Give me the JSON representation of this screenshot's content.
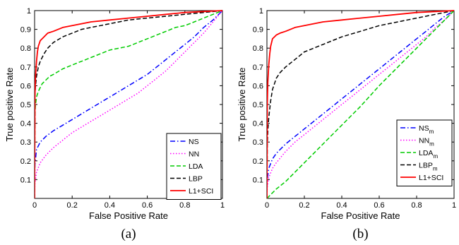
{
  "chart_data": [
    {
      "type": "line",
      "caption": "(a)",
      "xlabel": "False Positive Rate",
      "ylabel": "True positive Rate",
      "xlim": [
        0,
        1
      ],
      "ylim": [
        0,
        1
      ],
      "xticks": [
        "0",
        "0.2",
        "0.4",
        "0.6",
        "0.8",
        "1"
      ],
      "yticks": [
        "0.1",
        "0.2",
        "0.3",
        "0.4",
        "0.5",
        "0.6",
        "0.7",
        "0.8",
        "0.9",
        "1"
      ],
      "xtick_values": [
        0,
        0.2,
        0.4,
        0.6,
        0.8,
        1
      ],
      "ytick_values": [
        0.1,
        0.2,
        0.3,
        0.4,
        0.5,
        0.6,
        0.7,
        0.8,
        0.9,
        1
      ],
      "grid": false,
      "legend": "bottom-right",
      "series": [
        {
          "name": "NS",
          "color": "#0000ff",
          "dash": "dashdot",
          "x": [
            0,
            0.002,
            0.01,
            0.03,
            0.06,
            0.1,
            0.15,
            0.2,
            0.25,
            0.3,
            0.35,
            0.4,
            0.45,
            0.5,
            0.55,
            0.6,
            0.65,
            0.7,
            0.75,
            0.8,
            0.85,
            0.9,
            0.95,
            1
          ],
          "y": [
            0,
            0.18,
            0.26,
            0.3,
            0.33,
            0.36,
            0.39,
            0.42,
            0.45,
            0.48,
            0.51,
            0.54,
            0.57,
            0.6,
            0.63,
            0.66,
            0.7,
            0.74,
            0.78,
            0.82,
            0.86,
            0.91,
            0.95,
            1
          ]
        },
        {
          "name": "NN",
          "color": "#ff00ff",
          "dash": "dotted",
          "x": [
            0,
            0.002,
            0.01,
            0.03,
            0.06,
            0.1,
            0.15,
            0.2,
            0.25,
            0.3,
            0.35,
            0.4,
            0.45,
            0.5,
            0.55,
            0.6,
            0.65,
            0.7,
            0.75,
            0.8,
            0.85,
            0.9,
            0.95,
            1
          ],
          "y": [
            0,
            0.08,
            0.14,
            0.19,
            0.23,
            0.27,
            0.31,
            0.35,
            0.38,
            0.41,
            0.44,
            0.47,
            0.5,
            0.53,
            0.56,
            0.6,
            0.64,
            0.68,
            0.73,
            0.78,
            0.83,
            0.88,
            0.94,
            1
          ]
        },
        {
          "name": "LDA",
          "color": "#00cc00",
          "dash": "dashed",
          "x": [
            0,
            0.002,
            0.005,
            0.01,
            0.02,
            0.04,
            0.06,
            0.08,
            0.1,
            0.15,
            0.2,
            0.25,
            0.3,
            0.35,
            0.4,
            0.45,
            0.5,
            0.55,
            0.6,
            0.65,
            0.7,
            0.75,
            0.8,
            0.85,
            0.9,
            0.95,
            1
          ],
          "y": [
            0,
            0.45,
            0.5,
            0.54,
            0.57,
            0.61,
            0.63,
            0.65,
            0.66,
            0.69,
            0.71,
            0.73,
            0.75,
            0.77,
            0.79,
            0.8,
            0.81,
            0.83,
            0.85,
            0.87,
            0.89,
            0.91,
            0.92,
            0.94,
            0.96,
            0.98,
            1
          ]
        },
        {
          "name": "LBP",
          "color": "#000000",
          "dash": "dashed",
          "x": [
            0,
            0.002,
            0.005,
            0.01,
            0.02,
            0.03,
            0.05,
            0.07,
            0.1,
            0.15,
            0.2,
            0.25,
            0.3,
            0.35,
            0.4,
            0.45,
            0.5,
            0.6,
            0.7,
            0.8,
            0.9,
            1
          ],
          "y": [
            0,
            0.55,
            0.6,
            0.65,
            0.7,
            0.73,
            0.77,
            0.8,
            0.83,
            0.86,
            0.88,
            0.9,
            0.91,
            0.92,
            0.93,
            0.94,
            0.95,
            0.96,
            0.97,
            0.98,
            0.99,
            1
          ]
        },
        {
          "name": "L1+SCI",
          "color": "#ff0000",
          "dash": "solid",
          "x": [
            0,
            0.002,
            0.005,
            0.01,
            0.015,
            0.02,
            0.03,
            0.05,
            0.07,
            0.1,
            0.15,
            0.2,
            0.3,
            0.4,
            0.5,
            0.6,
            0.7,
            0.8,
            0.9,
            1
          ],
          "y": [
            0,
            0.55,
            0.65,
            0.73,
            0.78,
            0.81,
            0.84,
            0.86,
            0.88,
            0.89,
            0.91,
            0.92,
            0.94,
            0.95,
            0.96,
            0.97,
            0.98,
            0.99,
            0.995,
            1
          ]
        }
      ]
    },
    {
      "type": "line",
      "caption": "(b)",
      "xlabel": "False Positive Rate",
      "ylabel": "True positive Rate",
      "xlim": [
        0,
        1
      ],
      "ylim": [
        0,
        1
      ],
      "xticks": [
        "0",
        "0.2",
        "0.4",
        "0.6",
        "0.8",
        "1"
      ],
      "yticks": [
        "0.1",
        "0.2",
        "0.3",
        "0.4",
        "0.5",
        "0.6",
        "0.7",
        "0.8",
        "0.9",
        "1"
      ],
      "xtick_values": [
        0,
        0.2,
        0.4,
        0.6,
        0.8,
        1
      ],
      "ytick_values": [
        0.1,
        0.2,
        0.3,
        0.4,
        0.5,
        0.6,
        0.7,
        0.8,
        0.9,
        1
      ],
      "grid": false,
      "legend": "bottom-right",
      "series": [
        {
          "name": "NS",
          "subscript": "m",
          "color": "#0000ff",
          "dash": "dashdot",
          "x": [
            0,
            0.002,
            0.01,
            0.03,
            0.05,
            0.1,
            0.15,
            0.2,
            0.25,
            0.3,
            0.35,
            0.4,
            0.45,
            0.5,
            0.55,
            0.6,
            0.65,
            0.7,
            0.75,
            0.8,
            0.85,
            0.9,
            0.95,
            1
          ],
          "y": [
            0,
            0.1,
            0.16,
            0.21,
            0.24,
            0.29,
            0.33,
            0.37,
            0.41,
            0.45,
            0.49,
            0.53,
            0.57,
            0.61,
            0.65,
            0.69,
            0.73,
            0.77,
            0.81,
            0.85,
            0.89,
            0.93,
            0.97,
            1
          ]
        },
        {
          "name": "NN",
          "subscript": "m",
          "color": "#ff00ff",
          "dash": "dotted",
          "x": [
            0,
            0.002,
            0.01,
            0.03,
            0.05,
            0.1,
            0.15,
            0.2,
            0.25,
            0.3,
            0.35,
            0.4,
            0.45,
            0.5,
            0.55,
            0.6,
            0.65,
            0.7,
            0.75,
            0.8,
            0.85,
            0.9,
            0.95,
            1
          ],
          "y": [
            0,
            0.06,
            0.11,
            0.16,
            0.19,
            0.25,
            0.3,
            0.34,
            0.38,
            0.42,
            0.46,
            0.5,
            0.54,
            0.58,
            0.62,
            0.66,
            0.7,
            0.74,
            0.78,
            0.82,
            0.86,
            0.91,
            0.95,
            1
          ]
        },
        {
          "name": "LDA",
          "subscript": "m",
          "color": "#00cc00",
          "dash": "dashed",
          "x": [
            0,
            0.05,
            0.1,
            0.15,
            0.2,
            0.3,
            0.4,
            0.5,
            0.6,
            0.7,
            0.8,
            0.9,
            1
          ],
          "y": [
            0,
            0.05,
            0.09,
            0.14,
            0.19,
            0.29,
            0.39,
            0.49,
            0.6,
            0.7,
            0.8,
            0.9,
            1
          ]
        },
        {
          "name": "LBP",
          "subscript": "m",
          "color": "#000000",
          "dash": "dashed",
          "x": [
            0,
            0.002,
            0.005,
            0.01,
            0.02,
            0.03,
            0.05,
            0.07,
            0.1,
            0.15,
            0.2,
            0.25,
            0.3,
            0.4,
            0.5,
            0.6,
            0.7,
            0.8,
            0.9,
            1
          ],
          "y": [
            0,
            0.28,
            0.36,
            0.43,
            0.52,
            0.58,
            0.64,
            0.67,
            0.7,
            0.74,
            0.78,
            0.8,
            0.82,
            0.86,
            0.89,
            0.92,
            0.94,
            0.96,
            0.98,
            1
          ]
        },
        {
          "name": "L1+SCI",
          "color": "#ff0000",
          "dash": "solid",
          "x": [
            0,
            0.002,
            0.005,
            0.01,
            0.015,
            0.02,
            0.03,
            0.05,
            0.07,
            0.1,
            0.15,
            0.2,
            0.3,
            0.4,
            0.5,
            0.6,
            0.7,
            0.8,
            0.9,
            1
          ],
          "y": [
            0,
            0.5,
            0.62,
            0.71,
            0.77,
            0.81,
            0.85,
            0.87,
            0.88,
            0.89,
            0.91,
            0.92,
            0.94,
            0.95,
            0.96,
            0.97,
            0.98,
            0.99,
            0.995,
            1
          ]
        }
      ]
    }
  ]
}
